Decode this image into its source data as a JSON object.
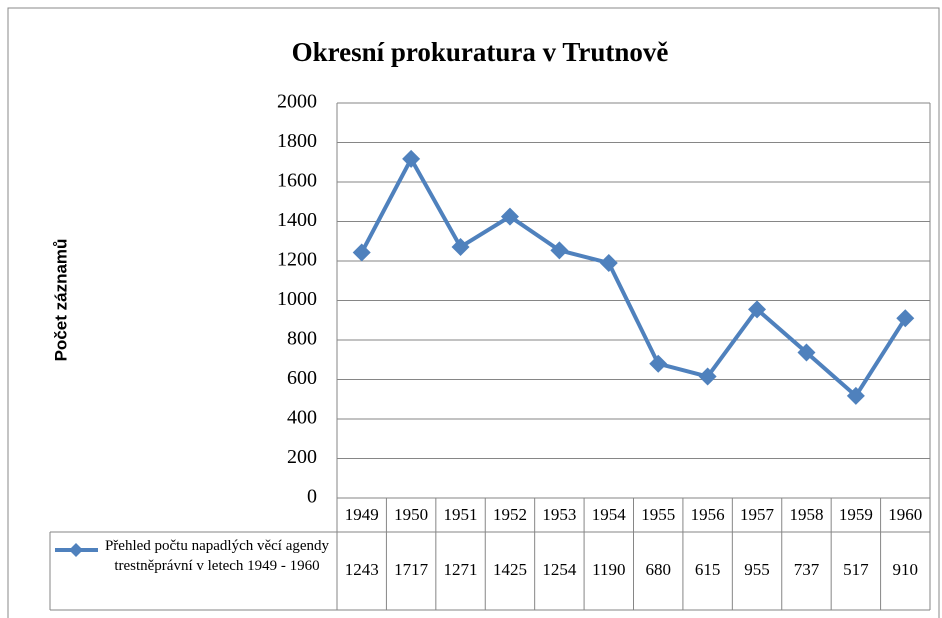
{
  "chart_data": {
    "type": "line",
    "title": "Okresní prokuratura v Trutnově",
    "y_label": "Počet záznamů",
    "categories": [
      "1949",
      "1950",
      "1951",
      "1952",
      "1953",
      "1954",
      "1955",
      "1956",
      "1957",
      "1958",
      "1959",
      "1960"
    ],
    "series": [
      {
        "name": "Přehled počtu napadlých věcí agendy trestněprávní v letech 1949 - 1960",
        "color": "#4f81bd",
        "values": [
          1243,
          1717,
          1271,
          1425,
          1254,
          1190,
          680,
          615,
          955,
          737,
          517,
          910
        ]
      }
    ],
    "ylim": [
      0,
      2000
    ],
    "yticks": [
      0,
      200,
      400,
      600,
      800,
      1000,
      1200,
      1400,
      1600,
      1800,
      2000
    ],
    "grid": true
  }
}
